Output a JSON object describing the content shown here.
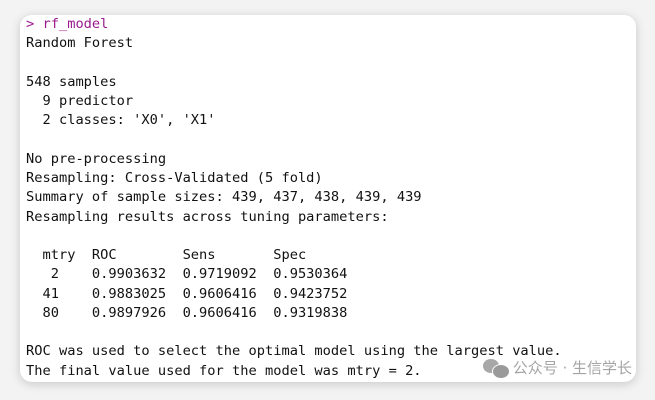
{
  "console": {
    "command": "> rf_model",
    "lines": [
      "Random Forest",
      "",
      "548 samples",
      "  9 predictor",
      "  2 classes: 'X0', 'X1'",
      "",
      "No pre-processing",
      "Resampling: Cross-Validated (5 fold)",
      "Summary of sample sizes: 439, 437, 438, 439, 439",
      "Resampling results across tuning parameters:",
      "",
      "  mtry  ROC        Sens       Spec     ",
      "   2    0.9903632  0.9719092  0.9530364",
      "  41    0.9883025  0.9606416  0.9423752",
      "  80    0.9897926  0.9606416  0.9319838",
      "",
      "ROC was used to select the optimal model using the largest value.",
      "The final value used for the model was mtry = 2."
    ]
  },
  "watermark": {
    "icon": "wechat-icon",
    "text": "公众号 · 生信学长"
  },
  "colors": {
    "prompt": "#9a1b8f",
    "text": "#111111",
    "watermark": "#a5a5a5"
  }
}
